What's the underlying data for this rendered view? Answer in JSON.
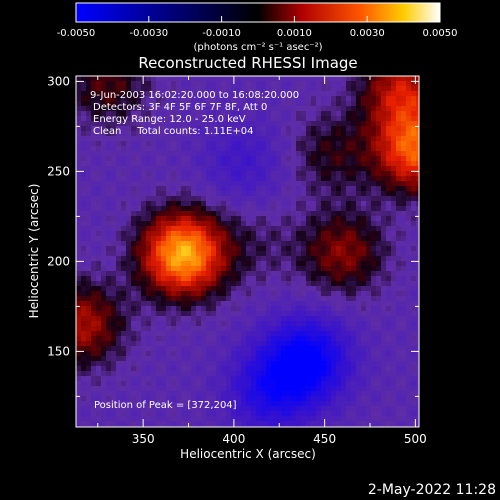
{
  "chart_data": {
    "type": "heatmap",
    "title": "Reconstructed RHESSI Image",
    "xlabel": "Heliocentric X (arcsec)",
    "ylabel": "Heliocentric Y (arcsec)",
    "xlim": [
      313,
      502
    ],
    "ylim": [
      108,
      303
    ],
    "x_ticks": [
      350,
      400,
      450,
      500
    ],
    "y_ticks": [
      150,
      200,
      250,
      300
    ],
    "colorbar": {
      "range": [
        -0.005,
        0.005
      ],
      "tick_labels": [
        "-0.0050",
        "-0.0030",
        "-0.0010",
        "0.0010",
        "0.0030",
        "0.0050"
      ],
      "tick_values": [
        -0.005,
        -0.003,
        -0.001,
        0.001,
        0.003,
        0.005
      ],
      "units": "(photons cm⁻² s⁻¹ asec⁻²)"
    },
    "annotations": [
      "9-Jun-2003 16:02:20.000 to 16:08:20.000",
      "Detectors: 3F 4F 5F 6F 7F 8F, Att 0",
      "Energy Range: 12.0 - 25.0 keV",
      "Clean     Total counts: 1.11E+04"
    ],
    "peak_label": "Position of Peak = [372,204]",
    "peak": [
      372,
      204
    ],
    "sources": [
      {
        "x": 372,
        "y": 204,
        "value": 0.005
      },
      {
        "x": 500,
        "y": 262,
        "value": 0.0038
      },
      {
        "x": 493,
        "y": 295,
        "value": 0.0026
      },
      {
        "x": 460,
        "y": 205,
        "value": 0.002
      },
      {
        "x": 316,
        "y": 165,
        "value": 0.0024
      },
      {
        "x": 330,
        "y": 298,
        "value": 0.0015
      },
      {
        "x": 453,
        "y": 260,
        "value": 0.0012
      },
      {
        "x": 413,
        "y": 210,
        "value": 0.0006
      },
      {
        "x": 440,
        "y": 145,
        "value": -0.004
      },
      {
        "x": 420,
        "y": 128,
        "value": -0.0025
      },
      {
        "x": 405,
        "y": 255,
        "value": -0.0012
      }
    ]
  },
  "footer_timestamp": "2-May-2022 11:28"
}
